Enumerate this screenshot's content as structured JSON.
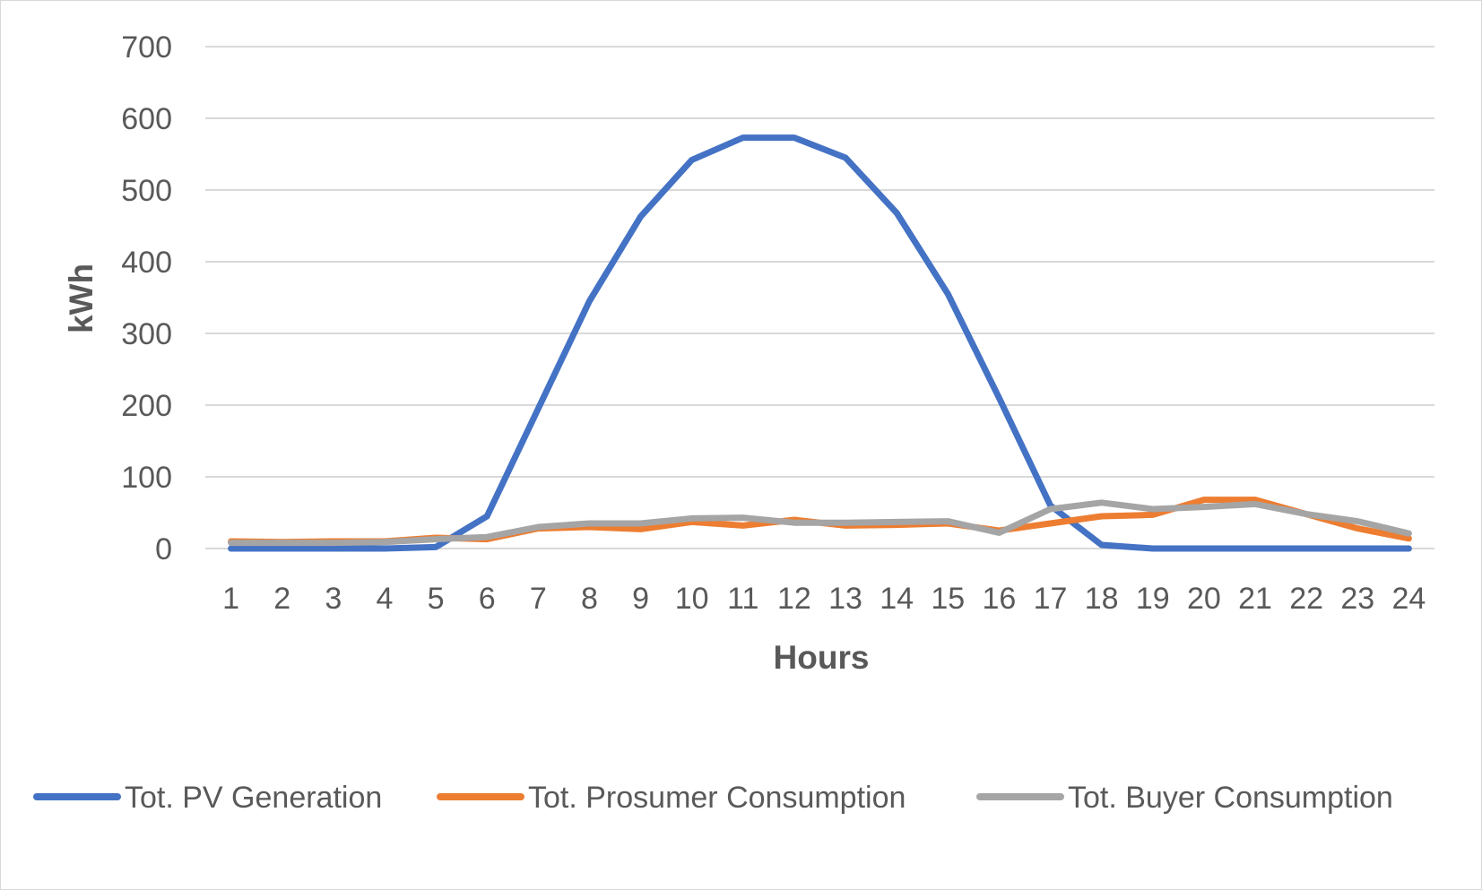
{
  "chart_data": {
    "type": "line",
    "xlabel": "Hours",
    "ylabel": "kWh",
    "ylim": [
      0,
      700
    ],
    "yticks": [
      "0",
      "100",
      "200",
      "300",
      "400",
      "500",
      "600",
      "700"
    ],
    "categories": [
      "1",
      "2",
      "3",
      "4",
      "5",
      "6",
      "7",
      "8",
      "9",
      "10",
      "11",
      "12",
      "13",
      "14",
      "15",
      "16",
      "17",
      "18",
      "19",
      "20",
      "21",
      "22",
      "23",
      "24"
    ],
    "grid": true,
    "legend": "bottom",
    "series": [
      {
        "name": "Tot. PV Generation",
        "color": "#4472C4",
        "values": [
          0,
          0,
          0,
          0,
          2,
          45,
          195,
          345,
          463,
          542,
          573,
          573,
          545,
          468,
          355,
          210,
          60,
          5,
          0,
          0,
          0,
          0,
          0,
          0
        ]
      },
      {
        "name": "Tot. Prosumer Consumption",
        "color": "#ED7D31",
        "values": [
          10,
          9,
          10,
          10,
          15,
          13,
          28,
          30,
          27,
          37,
          32,
          40,
          32,
          33,
          35,
          25,
          35,
          45,
          47,
          68,
          68,
          48,
          28,
          14
        ]
      },
      {
        "name": "Tot. Buyer Consumption",
        "color": "#A5A5A5",
        "values": [
          8,
          8,
          8,
          9,
          13,
          16,
          30,
          35,
          35,
          42,
          43,
          36,
          36,
          37,
          38,
          22,
          55,
          64,
          55,
          58,
          62,
          48,
          38,
          21
        ]
      }
    ]
  }
}
